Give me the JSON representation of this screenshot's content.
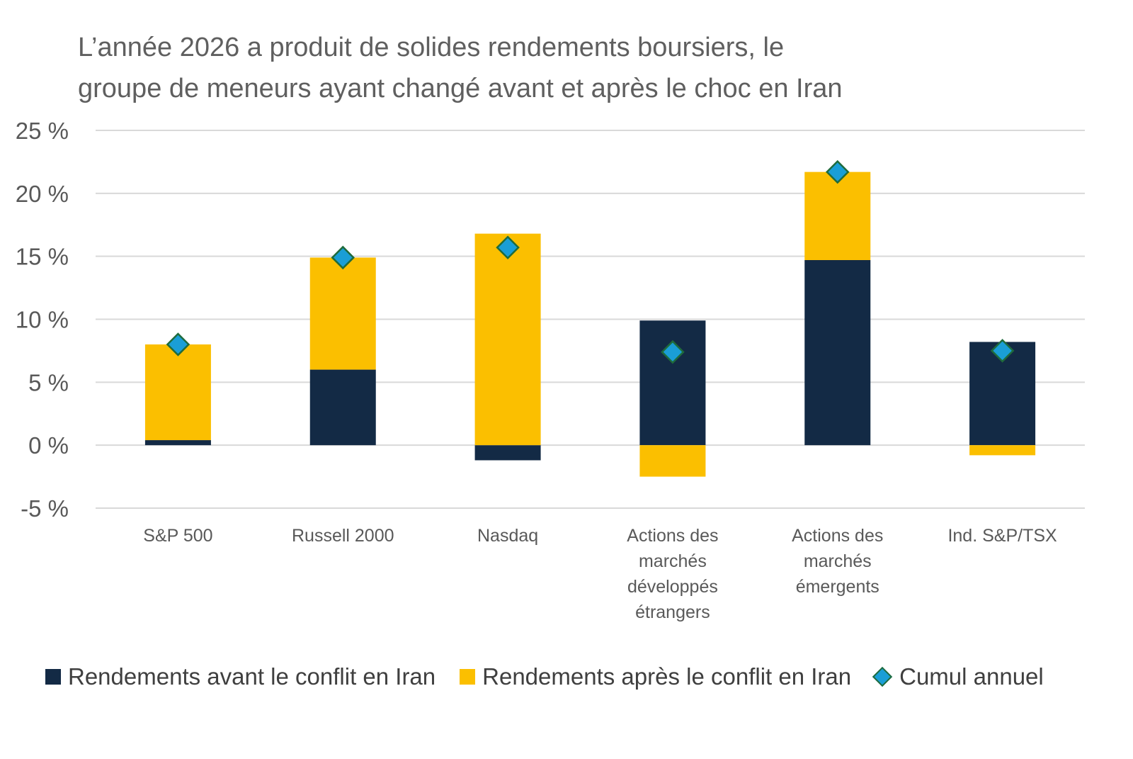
{
  "title_lines": [
    "L’année 2026 a produit de solides rendements boursiers, le",
    "groupe de meneurs ayant changé avant et après le choc en Iran"
  ],
  "chart_data": {
    "type": "bar",
    "stacked": true,
    "title": "L’année 2026 a produit de solides rendements boursiers, le groupe de meneurs ayant changé avant et après le choc en Iran",
    "categories": [
      [
        "S&P 500"
      ],
      [
        "Russell 2000"
      ],
      [
        "Nasdaq"
      ],
      [
        "Actions des",
        "marchés",
        "développés",
        "étrangers"
      ],
      [
        "Actions des",
        "marchés",
        "émergents"
      ],
      [
        "Ind. S&P/TSX"
      ]
    ],
    "series": [
      {
        "name": "Rendements avant le conflit en Iran",
        "type": "bar",
        "color": "#132a45",
        "values": [
          0.4,
          6.0,
          -1.2,
          9.9,
          14.7,
          8.2
        ]
      },
      {
        "name": "Rendements après le conflit en Iran",
        "type": "bar",
        "color": "#fbbf00",
        "values": [
          7.6,
          8.9,
          16.8,
          -2.5,
          7.0,
          -0.8
        ]
      },
      {
        "name": "Cumul annuel",
        "type": "marker",
        "marker": "diamond",
        "color": "#1a9ed6",
        "stroke": "#1f6b3c",
        "values": [
          8.0,
          14.9,
          15.7,
          7.4,
          21.7,
          7.5
        ]
      }
    ],
    "yticks": [
      "25 %",
      "20 %",
      "15 %",
      "10 %",
      "5 %",
      "0 %",
      "-5 %"
    ],
    "ytick_values": [
      25,
      20,
      15,
      10,
      5,
      0,
      -5
    ],
    "ylim": [
      -5,
      25
    ],
    "grid": true,
    "legend_position": "bottom"
  }
}
